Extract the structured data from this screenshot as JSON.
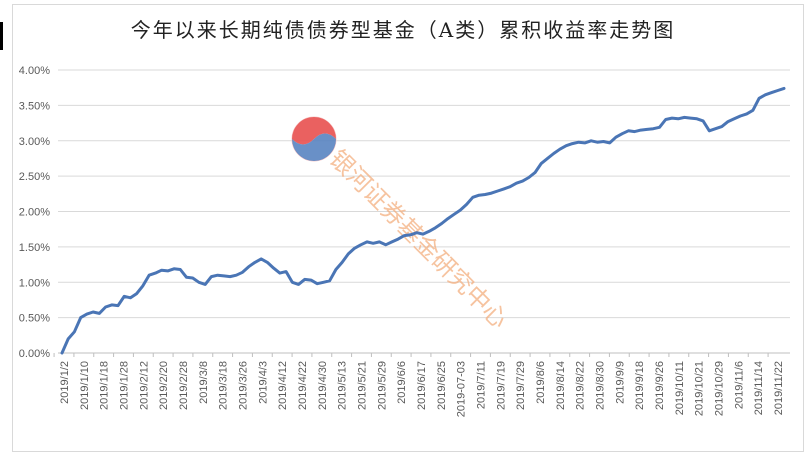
{
  "title": "今年以来长期纯债债券型基金（A类）累积收益率走势图",
  "watermark": {
    "text": "银河证券基金研究中心",
    "color": "#f4b183",
    "logo_colors": [
      "#e8504f",
      "#3c6fb6"
    ]
  },
  "chart_data": {
    "type": "line",
    "title": "今年以来长期纯债债券型基金（A类）累积收益率走势图",
    "xlabel": "",
    "ylabel": "",
    "ylim": [
      0,
      4.0
    ],
    "y_tick_values": [
      0,
      0.5,
      1.0,
      1.5,
      2.0,
      2.5,
      3.0,
      3.5,
      4.0
    ],
    "y_tick_labels": [
      "0.00%",
      "0.50%",
      "1.00%",
      "1.50%",
      "2.00%",
      "2.50%",
      "3.00%",
      "3.50%",
      "4.00%"
    ],
    "x_tick_labels": [
      "2019/1/2",
      "2019/1/10",
      "2019/1/18",
      "2019/1/28",
      "2019/2/12",
      "2019/2/20",
      "2019/2/28",
      "2019/3/8",
      "2019/3/18",
      "2019/3/26",
      "2019/4/3",
      "2019/4/12",
      "2019/4/22",
      "2019/4/30",
      "2019/5/13",
      "2019/5/21",
      "2019/5/29",
      "2019/6/6",
      "2019/6/17",
      "2019/6/25",
      "2019-07-03",
      "2019/7/11",
      "2019/7/19",
      "2019/7/29",
      "2019/8/6",
      "2019/8/14",
      "2019/8/22",
      "2019/8/30",
      "2019/9/9",
      "2019/9/18",
      "2019/9/26",
      "2019/10/11",
      "2019/10/21",
      "2019/10/29",
      "2019/11/6",
      "2019/11/14",
      "2019/11/22"
    ],
    "grid": true,
    "legend": "none",
    "line_color": "#4a75b5",
    "values": [
      0.0,
      0.2,
      0.3,
      0.5,
      0.55,
      0.58,
      0.56,
      0.65,
      0.68,
      0.67,
      0.8,
      0.78,
      0.84,
      0.95,
      1.1,
      1.13,
      1.17,
      1.16,
      1.19,
      1.18,
      1.07,
      1.06,
      1.0,
      0.97,
      1.08,
      1.1,
      1.09,
      1.08,
      1.1,
      1.14,
      1.22,
      1.28,
      1.33,
      1.28,
      1.2,
      1.13,
      1.15,
      1.0,
      0.97,
      1.04,
      1.03,
      0.98,
      1.0,
      1.02,
      1.18,
      1.28,
      1.4,
      1.48,
      1.53,
      1.57,
      1.55,
      1.57,
      1.53,
      1.57,
      1.61,
      1.66,
      1.67,
      1.7,
      1.68,
      1.72,
      1.77,
      1.83,
      1.9,
      1.96,
      2.02,
      2.1,
      2.2,
      2.23,
      2.24,
      2.26,
      2.29,
      2.32,
      2.35,
      2.4,
      2.43,
      2.48,
      2.55,
      2.68,
      2.75,
      2.82,
      2.88,
      2.93,
      2.96,
      2.98,
      2.97,
      3.0,
      2.98,
      2.99,
      2.97,
      3.05,
      3.1,
      3.14,
      3.13,
      3.15,
      3.16,
      3.17,
      3.19,
      3.3,
      3.32,
      3.31,
      3.33,
      3.32,
      3.31,
      3.28,
      3.14,
      3.17,
      3.2,
      3.27,
      3.31,
      3.35,
      3.38,
      3.43,
      3.6,
      3.65,
      3.68,
      3.71,
      3.74
    ]
  }
}
